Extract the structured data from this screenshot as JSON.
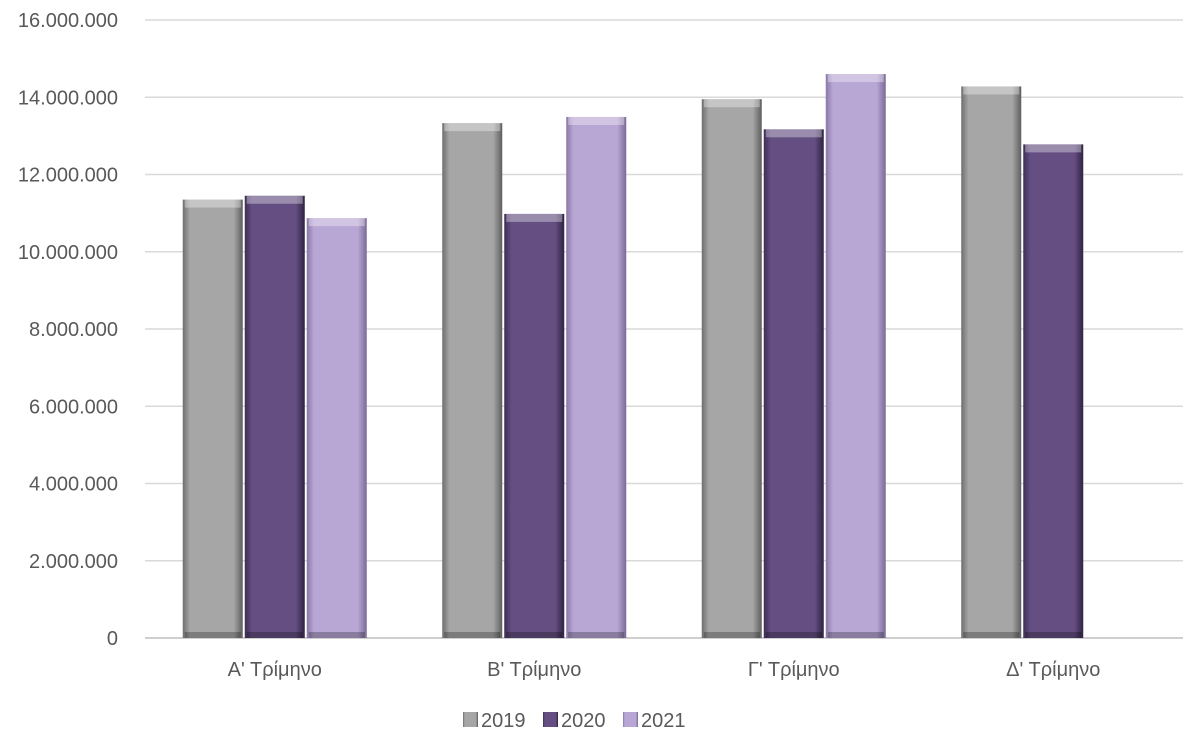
{
  "chart_data": {
    "type": "bar",
    "title": "",
    "xlabel": "",
    "ylabel": "",
    "categories": [
      "Α' Τρίμηνο",
      "Β' Τρίμηνο",
      "Γ' Τρίμηνο",
      "Δ' Τρίμηνο"
    ],
    "series": [
      {
        "name": "2019",
        "values": [
          11350000,
          13330000,
          13950000,
          14280000
        ]
      },
      {
        "name": "2020",
        "values": [
          11450000,
          10980000,
          13170000,
          12780000
        ]
      },
      {
        "name": "2021",
        "values": [
          10870000,
          13490000,
          14600000,
          null
        ]
      }
    ],
    "ylim": [
      0,
      16000000
    ],
    "yticks": [
      0,
      2000000,
      4000000,
      6000000,
      8000000,
      10000000,
      12000000,
      14000000,
      16000000
    ],
    "ytick_labels": [
      "0",
      "2.000.000",
      "4.000.000",
      "6.000.000",
      "8.000.000",
      "10.000.000",
      "12.000.000",
      "14.000.000",
      "16.000.000"
    ],
    "grid": true,
    "legend_position": "bottom",
    "colors": {
      "2019": "#a6a6a6",
      "2020": "#654f82",
      "2021": "#b8a6d4"
    }
  }
}
